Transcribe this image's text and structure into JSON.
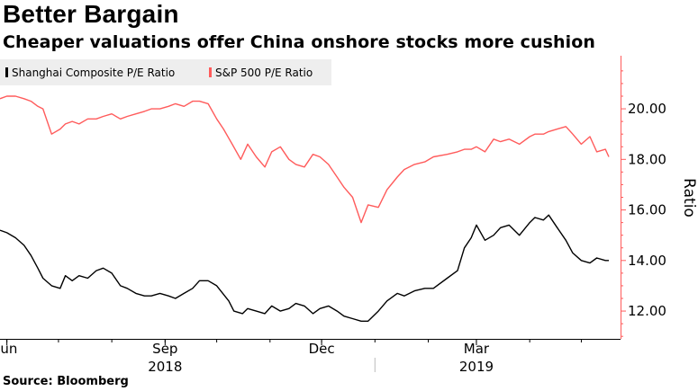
{
  "header": {
    "title": "Better Bargain",
    "subtitle": "Cheaper valuations offer China onshore stocks more cushion"
  },
  "footer": {
    "source": "Source: Bloomberg"
  },
  "colors": {
    "shanghai": "#000000",
    "sp500": "#ff5b5b",
    "axis": "#ff5b5b",
    "legend_bg": "#eeeeee"
  },
  "chart_data": {
    "type": "line",
    "title": "Better Bargain",
    "subtitle": "Cheaper valuations offer China onshore stocks more cushion",
    "xlabel": "",
    "ylabel": "Ratio",
    "ylim": [
      10.9,
      22.1
    ],
    "y_ticks": [
      12.0,
      14.0,
      16.0,
      18.0,
      20.0
    ],
    "y_tick_labels": [
      "12.00",
      "14.00",
      "16.00",
      "18.00",
      "20.00"
    ],
    "y_axis_side": "right",
    "x_range": [
      "2018-05-28",
      "2019-05-17"
    ],
    "x_ticks": [
      {
        "label": "Jun",
        "date": "2018-06-01"
      },
      {
        "label": "Sep",
        "date": "2018-09-01"
      },
      {
        "label": "Dec",
        "date": "2018-12-01"
      },
      {
        "label": "Mar",
        "date": "2019-03-01"
      }
    ],
    "x_year_labels": [
      {
        "label": "2018",
        "center": "2018-09-01"
      },
      {
        "label": "2019",
        "center": "2019-03-01"
      }
    ],
    "year_divider": "2019-01-01",
    "grid": false,
    "legend": {
      "placement": "top-left",
      "entries": [
        "Shanghai Composite P/E Ratio",
        "S&P 500 P/E Ratio"
      ]
    },
    "series": [
      {
        "name": "Shanghai Composite P/E Ratio",
        "color": "#000000",
        "x": [
          "2018-05-28",
          "2018-06-01",
          "2018-06-06",
          "2018-06-11",
          "2018-06-15",
          "2018-06-19",
          "2018-06-22",
          "2018-06-27",
          "2018-07-02",
          "2018-07-05",
          "2018-07-09",
          "2018-07-13",
          "2018-07-18",
          "2018-07-23",
          "2018-07-27",
          "2018-08-01",
          "2018-08-06",
          "2018-08-10",
          "2018-08-15",
          "2018-08-20",
          "2018-08-24",
          "2018-08-29",
          "2018-09-03",
          "2018-09-07",
          "2018-09-12",
          "2018-09-17",
          "2018-09-21",
          "2018-09-26",
          "2018-10-01",
          "2018-10-08",
          "2018-10-11",
          "2018-10-16",
          "2018-10-19",
          "2018-10-24",
          "2018-10-29",
          "2018-11-02",
          "2018-11-07",
          "2018-11-12",
          "2018-11-16",
          "2018-11-21",
          "2018-11-26",
          "2018-11-30",
          "2018-12-05",
          "2018-12-10",
          "2018-12-14",
          "2018-12-19",
          "2018-12-24",
          "2018-12-28",
          "2019-01-03",
          "2019-01-08",
          "2019-01-14",
          "2019-01-18",
          "2019-01-24",
          "2019-01-30",
          "2019-02-04",
          "2019-02-12",
          "2019-02-18",
          "2019-02-22",
          "2019-02-26",
          "2019-03-01",
          "2019-03-06",
          "2019-03-11",
          "2019-03-15",
          "2019-03-20",
          "2019-03-26",
          "2019-04-01",
          "2019-04-04",
          "2019-04-09",
          "2019-04-12",
          "2019-04-17",
          "2019-04-22",
          "2019-04-26",
          "2019-05-01",
          "2019-05-06",
          "2019-05-10",
          "2019-05-15",
          "2019-05-17"
        ],
        "values": [
          15.2,
          15.1,
          14.9,
          14.6,
          14.2,
          13.7,
          13.3,
          13.0,
          12.9,
          13.4,
          13.2,
          13.4,
          13.3,
          13.6,
          13.7,
          13.5,
          13.0,
          12.9,
          12.7,
          12.6,
          12.6,
          12.7,
          12.6,
          12.5,
          12.7,
          12.9,
          13.2,
          13.2,
          13.0,
          12.4,
          12.0,
          11.9,
          12.1,
          12.0,
          11.9,
          12.2,
          12.0,
          12.1,
          12.3,
          12.2,
          11.9,
          12.1,
          12.2,
          12.0,
          11.8,
          11.7,
          11.6,
          11.6,
          12.0,
          12.4,
          12.7,
          12.6,
          12.8,
          12.9,
          12.9,
          13.3,
          13.6,
          14.5,
          14.9,
          15.4,
          14.8,
          15.0,
          15.3,
          15.4,
          15.0,
          15.5,
          15.7,
          15.6,
          15.8,
          15.3,
          14.8,
          14.3,
          14.0,
          13.9,
          14.1,
          14.0,
          14.0
        ]
      },
      {
        "name": "S&P 500 P/E Ratio",
        "color": "#ff5b5b",
        "x": [
          "2018-05-28",
          "2018-06-01",
          "2018-06-06",
          "2018-06-11",
          "2018-06-15",
          "2018-06-19",
          "2018-06-22",
          "2018-06-27",
          "2018-07-02",
          "2018-07-05",
          "2018-07-09",
          "2018-07-13",
          "2018-07-18",
          "2018-07-23",
          "2018-07-27",
          "2018-08-01",
          "2018-08-06",
          "2018-08-10",
          "2018-08-15",
          "2018-08-20",
          "2018-08-24",
          "2018-08-29",
          "2018-09-03",
          "2018-09-07",
          "2018-09-12",
          "2018-09-17",
          "2018-09-21",
          "2018-09-26",
          "2018-10-01",
          "2018-10-05",
          "2018-10-10",
          "2018-10-15",
          "2018-10-19",
          "2018-10-24",
          "2018-10-29",
          "2018-11-02",
          "2018-11-07",
          "2018-11-12",
          "2018-11-16",
          "2018-11-21",
          "2018-11-26",
          "2018-11-30",
          "2018-12-05",
          "2018-12-10",
          "2018-12-14",
          "2018-12-19",
          "2018-12-24",
          "2018-12-28",
          "2019-01-03",
          "2019-01-08",
          "2019-01-14",
          "2019-01-18",
          "2019-01-24",
          "2019-01-30",
          "2019-02-04",
          "2019-02-12",
          "2019-02-18",
          "2019-02-22",
          "2019-02-26",
          "2019-03-01",
          "2019-03-06",
          "2019-03-11",
          "2019-03-15",
          "2019-03-20",
          "2019-03-26",
          "2019-04-01",
          "2019-04-04",
          "2019-04-09",
          "2019-04-12",
          "2019-04-17",
          "2019-04-22",
          "2019-04-26",
          "2019-05-01",
          "2019-05-06",
          "2019-05-10",
          "2019-05-15",
          "2019-05-17"
        ],
        "values": [
          20.4,
          20.5,
          20.5,
          20.4,
          20.3,
          20.1,
          20.0,
          19.0,
          19.2,
          19.4,
          19.5,
          19.4,
          19.6,
          19.6,
          19.7,
          19.8,
          19.6,
          19.7,
          19.8,
          19.9,
          20.0,
          20.0,
          20.1,
          20.2,
          20.1,
          20.3,
          20.3,
          20.2,
          19.6,
          19.2,
          18.6,
          18.0,
          18.6,
          18.1,
          17.7,
          18.3,
          18.5,
          18.0,
          17.8,
          17.7,
          18.2,
          18.1,
          17.8,
          17.3,
          16.9,
          16.5,
          15.5,
          16.2,
          16.1,
          16.8,
          17.3,
          17.6,
          17.8,
          17.9,
          18.1,
          18.2,
          18.3,
          18.4,
          18.4,
          18.5,
          18.3,
          18.8,
          18.7,
          18.8,
          18.6,
          18.9,
          19.0,
          19.0,
          19.1,
          19.2,
          19.3,
          19.0,
          18.6,
          18.9,
          18.3,
          18.4,
          18.1
        ]
      }
    ]
  }
}
